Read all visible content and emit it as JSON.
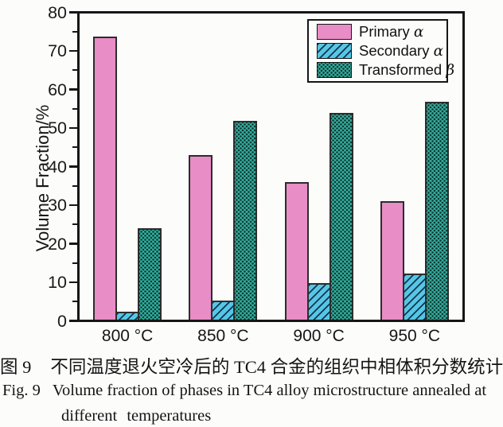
{
  "chart_data": {
    "type": "bar",
    "title": "",
    "xlabel": "",
    "ylabel": "Volume Fraction/%",
    "ylim": [
      0,
      80
    ],
    "y_major_ticks": [
      0,
      10,
      20,
      30,
      40,
      50,
      60,
      70,
      80
    ],
    "y_minor_tick_step": 5,
    "grid": false,
    "legend_position": "top-right",
    "categories": [
      "800 °C",
      "850 °C",
      "900 °C",
      "950 °C"
    ],
    "series": [
      {
        "name": "Primary",
        "symbol": "α",
        "pattern": "solid",
        "color": "#e88dc6",
        "values": [
          74,
          43,
          36,
          31
        ]
      },
      {
        "name": "Secondary",
        "symbol": "α",
        "pattern": "hatch",
        "color": "#55c6e7",
        "values": [
          2,
          5,
          9.5,
          12
        ]
      },
      {
        "name": "Transformed",
        "symbol": "β",
        "pattern": "dots",
        "color": "#33ae9e",
        "values": [
          24,
          52,
          54,
          57
        ]
      }
    ]
  },
  "caption": {
    "zh_label": "图 9",
    "zh_text": "不同温度退火空冷后的 TC4 合金的组织中相体积分数统计",
    "en_label": "Fig. 9",
    "en_line1": "Volume fraction of phases in TC4 alloy microstructure annealed at",
    "en_line2": "different temperatures"
  }
}
